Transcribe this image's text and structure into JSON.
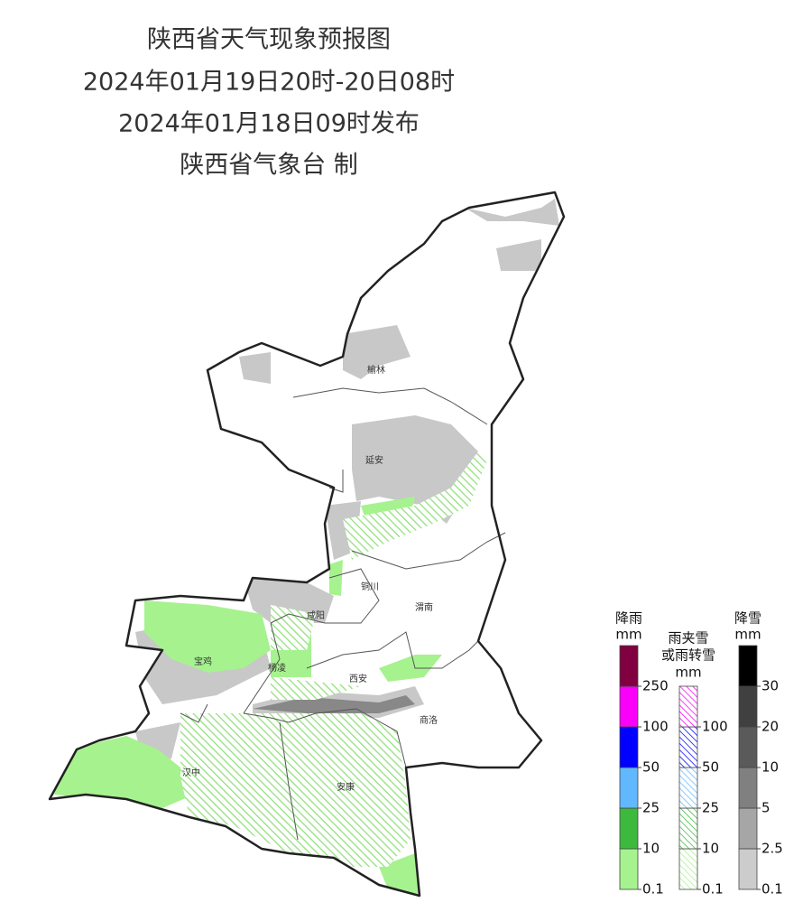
{
  "header": {
    "lines": [
      "陕西省天气现象预报图",
      "2024年01月19日20时-20日08时",
      "2024年01月18日09时发布",
      "陕西省气象台 制"
    ]
  },
  "cities": [
    "榆林",
    "延安",
    "铜川",
    "咸阳",
    "渭南",
    "宝鸡",
    "杨凌",
    "西安",
    "商洛",
    "汉中",
    "安康"
  ],
  "legend": [
    {
      "title": [
        "降雨",
        "mm"
      ],
      "ticks": [
        0.1,
        10,
        25,
        50,
        100,
        250
      ],
      "colors": [
        "#a6f28f",
        "#3dba3d",
        "#61b8ff",
        "#0000ff",
        "#fa00fa",
        "#800040"
      ],
      "hatched": false
    },
    {
      "title": [
        "雨夹雪",
        "或雨转雪",
        "mm"
      ],
      "ticks": [
        0.1,
        10,
        25,
        50,
        100
      ],
      "colors": [
        "#a6f28f",
        "#3dba3d",
        "#61b8ff",
        "#0000ff",
        "#fa00fa"
      ],
      "hatched": true
    },
    {
      "title": [
        "降雪",
        "mm"
      ],
      "ticks": [
        0.1,
        2.5,
        5,
        10,
        20,
        30
      ],
      "colors": [
        "#cccccc",
        "#a6a6a6",
        "#808080",
        "#5a5a5a",
        "#404040",
        "#000000"
      ],
      "hatched": false
    }
  ]
}
